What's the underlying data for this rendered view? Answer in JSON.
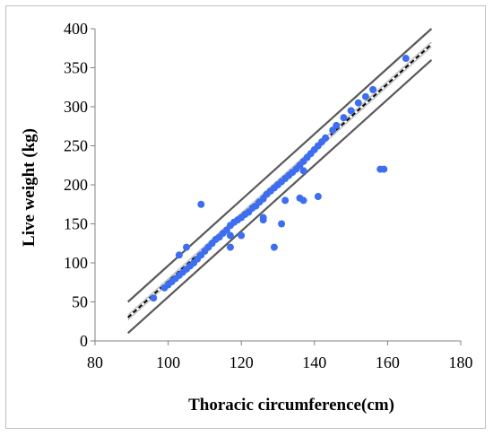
{
  "chart_data": {
    "type": "scatter",
    "title": "",
    "xlabel": "Thoracic circumference(cm)",
    "ylabel": "Live weight (kg)",
    "xlim": [
      80,
      180
    ],
    "ylim": [
      0,
      400
    ],
    "x_ticks": [
      "80",
      "100",
      "120",
      "140",
      "160",
      "180"
    ],
    "y_ticks": [
      "0",
      "50",
      "100",
      "150",
      "200",
      "250",
      "300",
      "350",
      "400"
    ],
    "grid": false,
    "legend": "none",
    "colors": {
      "points": "#3d6ef0",
      "fit": "#000000",
      "ci": "#bfbfbf",
      "pi": "#595959"
    },
    "series": [
      {
        "type": "scatter",
        "points": [
          [
            96,
            55
          ],
          [
            99,
            68
          ],
          [
            100,
            72
          ],
          [
            101,
            76
          ],
          [
            102,
            80
          ],
          [
            103,
            84
          ],
          [
            103,
            110
          ],
          [
            104,
            88
          ],
          [
            105,
            92
          ],
          [
            105,
            120
          ],
          [
            106,
            96
          ],
          [
            107,
            100
          ],
          [
            108,
            105
          ],
          [
            109,
            110
          ],
          [
            109,
            175
          ],
          [
            110,
            115
          ],
          [
            111,
            120
          ],
          [
            112,
            125
          ],
          [
            113,
            130
          ],
          [
            114,
            133
          ],
          [
            115,
            138
          ],
          [
            116,
            142
          ],
          [
            117,
            120
          ],
          [
            117,
            135
          ],
          [
            117,
            148
          ],
          [
            118,
            152
          ],
          [
            119,
            155
          ],
          [
            120,
            135
          ],
          [
            120,
            158
          ],
          [
            121,
            162
          ],
          [
            122,
            165
          ],
          [
            123,
            170
          ],
          [
            124,
            173
          ],
          [
            125,
            178
          ],
          [
            126,
            155
          ],
          [
            126,
            158
          ],
          [
            126,
            182
          ],
          [
            127,
            188
          ],
          [
            128,
            192
          ],
          [
            129,
            120
          ],
          [
            129,
            196
          ],
          [
            130,
            200
          ],
          [
            131,
            150
          ],
          [
            131,
            204
          ],
          [
            132,
            180
          ],
          [
            132,
            208
          ],
          [
            133,
            212
          ],
          [
            134,
            216
          ],
          [
            135,
            220
          ],
          [
            136,
            183
          ],
          [
            136,
            225
          ],
          [
            137,
            180
          ],
          [
            137,
            218
          ],
          [
            137,
            230
          ],
          [
            138,
            235
          ],
          [
            139,
            240
          ],
          [
            140,
            245
          ],
          [
            141,
            185
          ],
          [
            141,
            250
          ],
          [
            142,
            255
          ],
          [
            143,
            260
          ],
          [
            145,
            270
          ],
          [
            146,
            276
          ],
          [
            148,
            286
          ],
          [
            150,
            295
          ],
          [
            152,
            305
          ],
          [
            154,
            313
          ],
          [
            156,
            322
          ],
          [
            158,
            220
          ],
          [
            159,
            220
          ],
          [
            165,
            362
          ]
        ]
      },
      {
        "type": "line",
        "role": "fit",
        "points": [
          [
            89,
            30
          ],
          [
            172,
            380
          ]
        ]
      },
      {
        "type": "line",
        "role": "ci-upper",
        "points": [
          [
            89,
            33
          ],
          [
            172,
            383
          ]
        ]
      },
      {
        "type": "line",
        "role": "ci-lower",
        "points": [
          [
            89,
            27
          ],
          [
            172,
            377
          ]
        ]
      },
      {
        "type": "line",
        "role": "pi-upper",
        "points": [
          [
            89,
            50
          ],
          [
            172,
            400
          ]
        ]
      },
      {
        "type": "line",
        "role": "pi-lower",
        "points": [
          [
            89,
            10
          ],
          [
            172,
            360
          ]
        ]
      }
    ]
  }
}
